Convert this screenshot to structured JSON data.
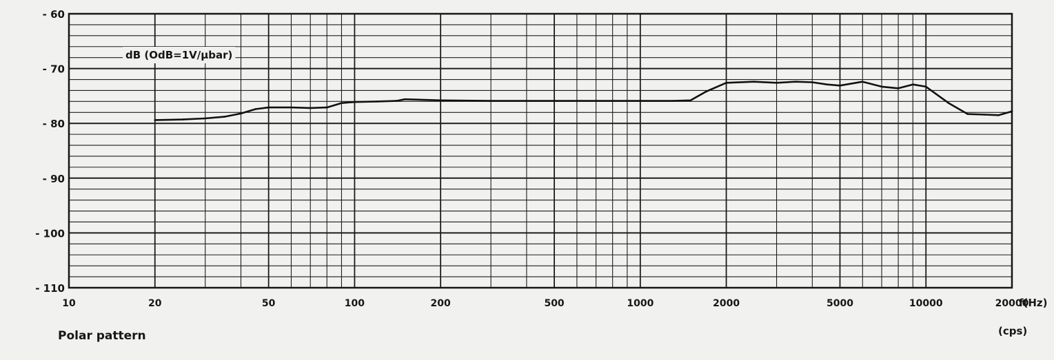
{
  "chart_data": {
    "type": "line",
    "x_scale": "log",
    "y_direction": "inverted",
    "xlim": [
      10,
      20000
    ],
    "ylim": [
      -110,
      -60
    ],
    "grid": true,
    "y_ticks": [
      {
        "value": -60,
        "label": "- 60"
      },
      {
        "value": -70,
        "label": "- 70"
      },
      {
        "value": -80,
        "label": "- 80"
      },
      {
        "value": -90,
        "label": "- 90"
      },
      {
        "value": -100,
        "label": "- 100"
      },
      {
        "value": -110,
        "label": "- 110"
      }
    ],
    "x_ticks": [
      {
        "value": 10,
        "label": "10"
      },
      {
        "value": 20,
        "label": "20"
      },
      {
        "value": 50,
        "label": "50"
      },
      {
        "value": 100,
        "label": "100"
      },
      {
        "value": 200,
        "label": "200"
      },
      {
        "value": 500,
        "label": "500"
      },
      {
        "value": 1000,
        "label": "1000"
      },
      {
        "value": 2000,
        "label": "2000"
      },
      {
        "value": 5000,
        "label": "5000"
      },
      {
        "value": 10000,
        "label": "10000"
      },
      {
        "value": 20000,
        "label": "20000"
      }
    ],
    "xlabel": "f(Hz)",
    "ylabel": "dB (OdB=1V/μbar)",
    "x": [
      20,
      25,
      30,
      35,
      40,
      45,
      50,
      60,
      70,
      80,
      90,
      100,
      120,
      140,
      150,
      200,
      300,
      500,
      700,
      1000,
      1300,
      1500,
      1700,
      2000,
      2500,
      3000,
      3500,
      4000,
      4500,
      5000,
      6000,
      7000,
      8000,
      9000,
      10000,
      12000,
      14000,
      16000,
      18000,
      20000
    ],
    "series": [
      {
        "values": [
          -79.4,
          -79.3,
          -79.1,
          -78.8,
          -78.2,
          -77.4,
          -77.1,
          -77.1,
          -77.2,
          -77.1,
          -76.3,
          -76.1,
          -76.0,
          -75.9,
          -75.6,
          -75.8,
          -75.9,
          -75.9,
          -75.9,
          -75.9,
          -75.9,
          -75.8,
          -74.2,
          -72.6,
          -72.4,
          -72.6,
          -72.4,
          -72.5,
          -72.9,
          -73.1,
          -72.4,
          -73.3,
          -73.6,
          -72.9,
          -73.3,
          -76.3,
          -78.3,
          -78.4,
          -78.5,
          -77.8
        ]
      }
    ]
  },
  "footer": {
    "title": "Polar pattern",
    "units": "(cps)"
  }
}
